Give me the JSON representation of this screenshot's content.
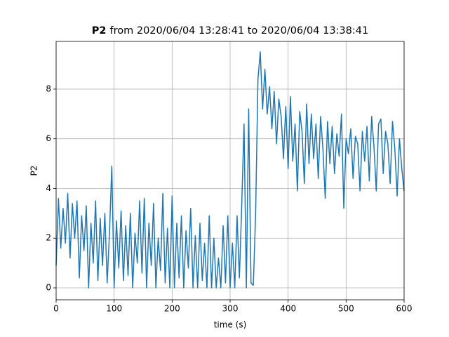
{
  "chart_data": {
    "type": "line",
    "title": {
      "bold": "P2",
      "rest": "from 2020/06/04 13:28:41 to 2020/06/04 13:38:41"
    },
    "x_label": "time (s)",
    "y_label": "P2",
    "x": [
      0,
      4,
      8,
      12,
      16,
      20,
      24,
      28,
      32,
      36,
      40,
      44,
      48,
      52,
      56,
      60,
      64,
      68,
      72,
      76,
      80,
      84,
      88,
      92,
      96,
      100,
      104,
      108,
      112,
      116,
      120,
      124,
      128,
      132,
      136,
      140,
      144,
      148,
      152,
      156,
      160,
      164,
      168,
      172,
      176,
      180,
      184,
      188,
      192,
      196,
      200,
      204,
      208,
      212,
      216,
      220,
      224,
      228,
      232,
      236,
      240,
      244,
      248,
      252,
      256,
      260,
      264,
      268,
      272,
      276,
      280,
      284,
      288,
      292,
      296,
      300,
      304,
      308,
      312,
      316,
      320,
      324,
      328,
      332,
      336,
      340,
      344,
      348,
      352,
      356,
      360,
      364,
      368,
      372,
      376,
      380,
      384,
      388,
      392,
      396,
      400,
      404,
      408,
      412,
      416,
      420,
      424,
      428,
      432,
      436,
      440,
      444,
      448,
      452,
      456,
      460,
      464,
      468,
      472,
      476,
      480,
      484,
      488,
      492,
      496,
      500,
      504,
      508,
      512,
      516,
      520,
      524,
      528,
      532,
      536,
      540,
      544,
      548,
      552,
      556,
      560,
      564,
      568,
      572,
      576,
      580,
      584,
      588,
      592,
      596,
      600
    ],
    "series": [
      {
        "name": "P2",
        "color": "#1f77b4",
        "values": [
          0.9,
          3.6,
          1.6,
          3.2,
          1.8,
          3.8,
          1.2,
          3.4,
          2.0,
          3.5,
          0.4,
          2.9,
          1.5,
          3.3,
          0.0,
          2.6,
          1.0,
          3.5,
          0.3,
          2.8,
          0.9,
          3.0,
          0.2,
          2.2,
          4.9,
          0.0,
          2.7,
          0.8,
          3.1,
          0.3,
          2.5,
          0.5,
          3.0,
          0.0,
          2.2,
          1.0,
          3.5,
          0.6,
          3.6,
          0.0,
          2.6,
          0.9,
          3.4,
          0.0,
          2.0,
          0.7,
          3.8,
          0.2,
          2.4,
          0.0,
          3.7,
          0.0,
          2.6,
          0.4,
          2.9,
          0.0,
          2.3,
          0.8,
          3.2,
          0.0,
          2.1,
          0.0,
          2.6,
          0.3,
          1.8,
          0.0,
          2.9,
          0.0,
          2.0,
          0.0,
          1.2,
          0.0,
          2.5,
          0.2,
          2.9,
          0.0,
          1.8,
          0.0,
          2.9,
          0.4,
          3.3,
          6.6,
          0.0,
          7.2,
          0.2,
          0.1,
          3.0,
          8.4,
          9.5,
          7.2,
          8.8,
          7.0,
          8.1,
          6.4,
          7.9,
          5.8,
          7.6,
          6.9,
          5.2,
          7.3,
          4.8,
          7.7,
          5.1,
          6.6,
          3.9,
          7.1,
          6.3,
          4.2,
          7.4,
          5.0,
          7.0,
          5.2,
          6.6,
          4.4,
          6.9,
          5.6,
          3.6,
          6.7,
          5.0,
          6.5,
          4.6,
          6.2,
          5.3,
          7.0,
          3.2,
          6.0,
          5.4,
          6.4,
          4.4,
          6.1,
          5.8,
          3.9,
          6.3,
          5.1,
          6.5,
          4.3,
          6.9,
          5.7,
          3.9,
          6.6,
          6.8,
          4.6,
          6.3,
          5.8,
          4.2,
          6.7,
          5.6,
          3.7,
          6.0,
          4.8,
          3.9
        ]
      }
    ],
    "xlim": [
      0,
      600
    ],
    "xticks": [
      0,
      100,
      200,
      300,
      400,
      500,
      600
    ],
    "ylim": [
      -0.48,
      9.92
    ],
    "yticks": [
      0,
      2,
      4,
      6,
      8
    ],
    "grid": true
  }
}
